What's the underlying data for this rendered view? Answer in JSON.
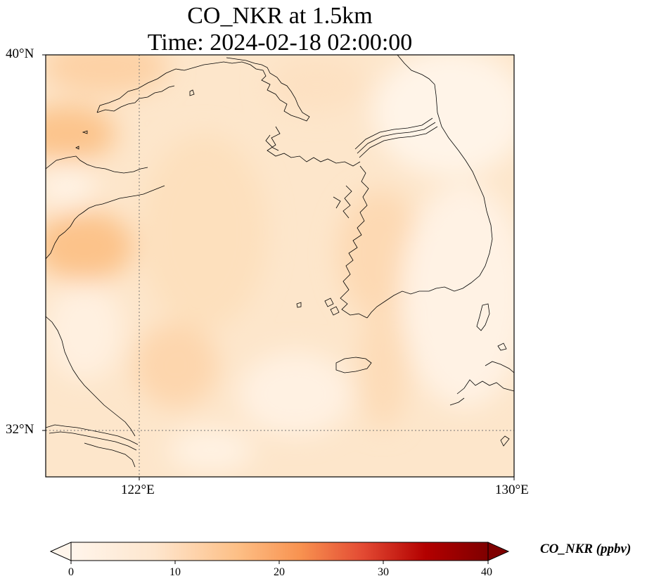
{
  "title_line1": "CO_NKR at 1.5km",
  "title_line2": "Time: 2024-02-18 02:00:00",
  "lat_labels": [
    "40°N",
    "32°N"
  ],
  "lon_labels": [
    "122°E",
    "130°E"
  ],
  "colorbar": {
    "label": "CO_NKR (ppbv)",
    "ticks": [
      "0",
      "10",
      "20",
      "30",
      "40"
    ],
    "range": [
      0,
      40
    ],
    "extend": "both",
    "colormap": "Oranges-to-dark-red",
    "colors": [
      "#fff5eb",
      "#fdd9b0",
      "#fdae6b",
      "#f16913",
      "#b30000",
      "#7f0000"
    ]
  },
  "map": {
    "extent_lon": [
      120,
      130
    ],
    "extent_lat": [
      31,
      40
    ],
    "gridlines": "dotted",
    "field_colors": {
      "low": "#fff3e6",
      "mid": "#fde2c2",
      "high": "#fcc896"
    }
  }
}
